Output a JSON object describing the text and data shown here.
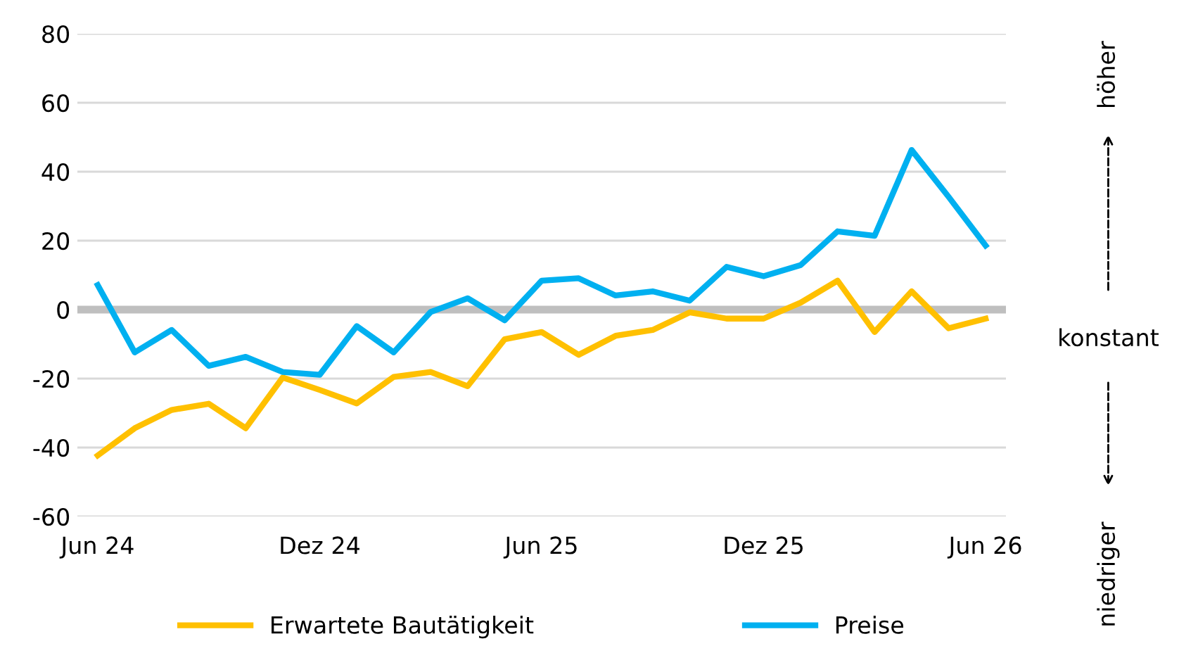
{
  "chart_data": {
    "type": "line",
    "categories": [
      "Jun 24",
      null,
      null,
      null,
      null,
      null,
      "Dez 24",
      null,
      null,
      null,
      null,
      null,
      "Jun 25",
      null,
      null,
      null,
      null,
      null,
      "Dez 25",
      null,
      null,
      null,
      null,
      null,
      "Jun 26"
    ],
    "series": [
      {
        "name": "Erwartete Bautätigkeit",
        "color": "#ffc000",
        "values": [
          -42.3,
          -34.4,
          -29.1,
          -27.3,
          -34.4,
          -19.7,
          -23.3,
          -27.2,
          -19.5,
          -18.1,
          -22.2,
          -8.6,
          -6.5,
          -13.1,
          -7.6,
          -5.9,
          -0.8,
          -2.6,
          -2.6,
          2.0,
          8.4,
          -6.5,
          5.3,
          -5.4,
          -2.6
        ]
      },
      {
        "name": "Preise",
        "color": "#00b0f0",
        "values": [
          7.1,
          -12.4,
          -5.9,
          -16.3,
          -13.7,
          -18.1,
          -18.9,
          -4.8,
          -12.4,
          -0.7,
          3.3,
          -3.1,
          8.4,
          9.1,
          4.1,
          5.3,
          2.6,
          12.4,
          9.7,
          12.9,
          22.7,
          21.4,
          46.3,
          32.7,
          18.6
        ]
      }
    ],
    "ylim": [
      -60,
      80
    ],
    "yticks": [
      -60,
      -40,
      -20,
      0,
      20,
      40,
      60,
      80
    ],
    "grid": "y",
    "legend": "bottom",
    "line_style": "solid",
    "marker": "none",
    "ref_lines": [
      {
        "axis": "y",
        "value": 0,
        "color": "#bfbfbf"
      }
    ],
    "annotations": [
      "höher",
      "konstant",
      "niedriger"
    ]
  }
}
